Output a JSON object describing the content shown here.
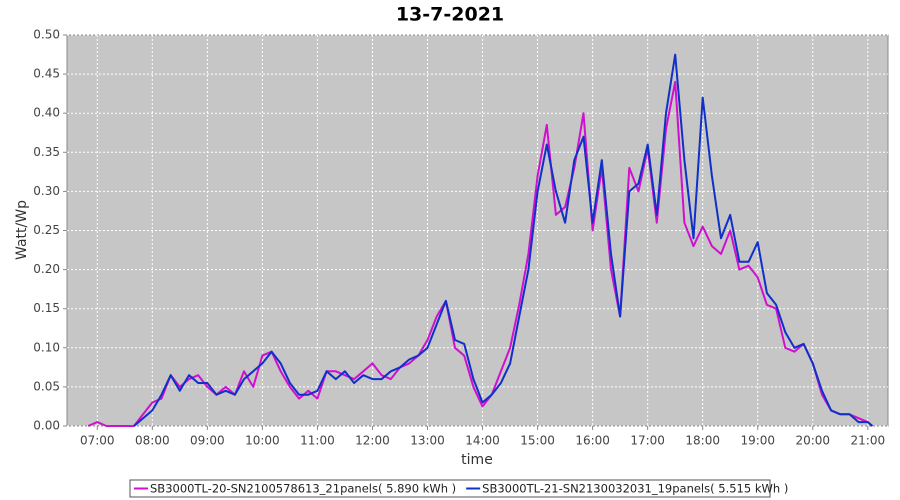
{
  "chart_data": {
    "type": "line",
    "title": "13-7-2021",
    "x_label": "time",
    "y_label": "Watt/Wp",
    "x": [
      410,
      420,
      430,
      440,
      450,
      460,
      470,
      480,
      490,
      500,
      510,
      520,
      530,
      540,
      550,
      560,
      570,
      580,
      590,
      600,
      610,
      620,
      630,
      640,
      650,
      660,
      670,
      680,
      690,
      700,
      710,
      720,
      730,
      740,
      750,
      760,
      770,
      780,
      790,
      800,
      810,
      820,
      830,
      840,
      850,
      860,
      870,
      880,
      890,
      900,
      910,
      920,
      930,
      940,
      950,
      960,
      970,
      980,
      990,
      1000,
      1010,
      1020,
      1030,
      1040,
      1050,
      1060,
      1070,
      1080,
      1090,
      1100,
      1110,
      1120,
      1130,
      1140,
      1150,
      1160,
      1170,
      1180,
      1190,
      1200,
      1210,
      1220,
      1230,
      1240,
      1250,
      1260,
      1265
    ],
    "series": [
      {
        "name": "SB3000TL-20-SN2100578613_21panels( 5.890 kWh )",
        "color": "#d010d0",
        "values": [
          0,
          0.005,
          0,
          0,
          0,
          0,
          0.015,
          0.03,
          0.035,
          0.065,
          0.05,
          0.06,
          0.065,
          0.05,
          0.04,
          0.05,
          0.04,
          0.07,
          0.05,
          0.09,
          0.095,
          0.07,
          0.05,
          0.035,
          0.045,
          0.035,
          0.07,
          0.07,
          0.065,
          0.06,
          0.07,
          0.08,
          0.065,
          0.06,
          0.075,
          0.08,
          0.09,
          0.11,
          0.14,
          0.16,
          0.1,
          0.09,
          0.05,
          0.025,
          0.04,
          0.07,
          0.1,
          0.155,
          0.22,
          0.32,
          0.385,
          0.27,
          0.28,
          0.33,
          0.4,
          0.25,
          0.33,
          0.2,
          0.14,
          0.33,
          0.3,
          0.355,
          0.26,
          0.38,
          0.44,
          0.26,
          0.23,
          0.255,
          0.23,
          0.22,
          0.25,
          0.2,
          0.205,
          0.19,
          0.155,
          0.15,
          0.1,
          0.095,
          0.105,
          0.08,
          0.04,
          0.02,
          0.015,
          0.015,
          0.01,
          0.005,
          0
        ]
      },
      {
        "name": "SB3000TL-21-SN2130032031_19panels( 5.515 kWh )",
        "color": "#1030c8",
        "values": [
          null,
          null,
          null,
          null,
          null,
          0,
          0.01,
          0.02,
          0.04,
          0.065,
          0.045,
          0.065,
          0.055,
          0.055,
          0.04,
          0.045,
          0.04,
          0.06,
          0.07,
          0.08,
          0.095,
          0.08,
          0.055,
          0.04,
          0.04,
          0.045,
          0.07,
          0.06,
          0.07,
          0.055,
          0.065,
          0.06,
          0.06,
          0.07,
          0.075,
          0.085,
          0.09,
          0.1,
          0.13,
          0.16,
          0.11,
          0.105,
          0.06,
          0.03,
          0.04,
          0.055,
          0.08,
          0.14,
          0.2,
          0.3,
          0.36,
          0.3,
          0.26,
          0.34,
          0.37,
          0.26,
          0.34,
          0.22,
          0.14,
          0.3,
          0.31,
          0.36,
          0.27,
          0.4,
          0.475,
          0.34,
          0.24,
          0.42,
          0.32,
          0.24,
          0.27,
          0.21,
          0.21,
          0.235,
          0.17,
          0.155,
          0.12,
          0.1,
          0.105,
          0.08,
          0.045,
          0.02,
          0.015,
          0.015,
          0.005,
          0.005,
          0
        ]
      }
    ],
    "xlim": [
      387,
      1282
    ],
    "ylim": [
      0,
      0.5
    ],
    "xticks": [
      {
        "value": 420,
        "label": "07:00"
      },
      {
        "value": 480,
        "label": "08:00"
      },
      {
        "value": 540,
        "label": "09:00"
      },
      {
        "value": 600,
        "label": "10:00"
      },
      {
        "value": 660,
        "label": "11:00"
      },
      {
        "value": 720,
        "label": "12:00"
      },
      {
        "value": 780,
        "label": "13:00"
      },
      {
        "value": 840,
        "label": "14:00"
      },
      {
        "value": 900,
        "label": "15:00"
      },
      {
        "value": 960,
        "label": "16:00"
      },
      {
        "value": 1020,
        "label": "17:00"
      },
      {
        "value": 1080,
        "label": "18:00"
      },
      {
        "value": 1140,
        "label": "19:00"
      },
      {
        "value": 1200,
        "label": "20:00"
      },
      {
        "value": 1260,
        "label": "21:00"
      }
    ],
    "yticks": [
      {
        "value": 0,
        "label": "0.00"
      },
      {
        "value": 0.05,
        "label": "0.05"
      },
      {
        "value": 0.1,
        "label": "0.10"
      },
      {
        "value": 0.15,
        "label": "0.15"
      },
      {
        "value": 0.2,
        "label": "0.20"
      },
      {
        "value": 0.25,
        "label": "0.25"
      },
      {
        "value": 0.3,
        "label": "0.30"
      },
      {
        "value": 0.35,
        "label": "0.35"
      },
      {
        "value": 0.4,
        "label": "0.40"
      },
      {
        "value": 0.45,
        "label": "0.45"
      },
      {
        "value": 0.5,
        "label": "0.50"
      }
    ],
    "grid": true,
    "legend": "bottom"
  }
}
